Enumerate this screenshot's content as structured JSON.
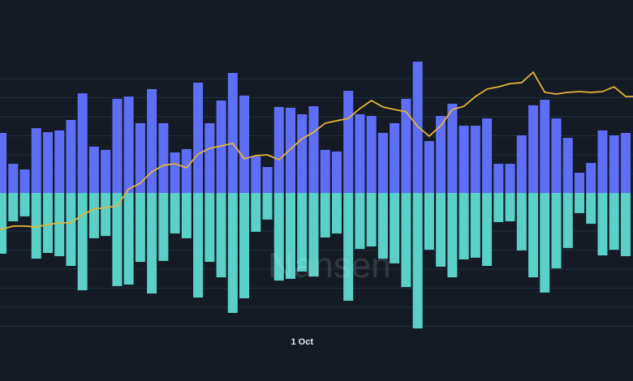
{
  "chart_data": {
    "type": "bar",
    "title": "",
    "xlabel": "",
    "ylabel": "",
    "x_tick_labels": [
      {
        "index": 26,
        "label": "1 Oct"
      }
    ],
    "ylim": [
      -7,
      6.5
    ],
    "grid": true,
    "legend": "none",
    "watermark": "Nansen",
    "colors": {
      "background": "#141b24",
      "positive": "#5f6ef6",
      "negative": "#5ad0c6",
      "line": "#e3b33b",
      "grid": "#1e3142"
    },
    "series": [
      {
        "name": "positive",
        "type": "bar",
        "values": [
          3.15,
          1.53,
          1.23,
          3.4,
          3.19,
          3.28,
          3.83,
          5.23,
          2.43,
          2.26,
          4.94,
          5.06,
          3.66,
          5.45,
          3.66,
          2.13,
          2.3,
          5.79,
          3.66,
          4.85,
          6.3,
          5.11,
          1.91,
          1.36,
          4.51,
          4.47,
          4.13,
          4.55,
          2.26,
          2.17,
          5.36,
          4.13,
          4.04,
          3.15,
          3.66,
          4.94,
          6.89,
          2.72,
          4.04,
          4.68,
          3.53,
          3.53,
          3.91,
          1.53,
          1.53,
          3.02,
          4.6,
          4.89,
          3.91,
          2.89,
          1.06,
          1.57,
          3.28,
          3.02,
          3.15
        ]
      },
      {
        "name": "negative",
        "type": "bar",
        "values": [
          -3.19,
          -1.49,
          -1.23,
          -3.45,
          -3.15,
          -3.32,
          -3.83,
          -5.11,
          -2.38,
          -2.26,
          -4.89,
          -4.81,
          -3.62,
          -5.28,
          -3.57,
          -2.13,
          -2.38,
          -5.49,
          -3.62,
          -4.43,
          -6.3,
          -5.53,
          -2.04,
          -1.4,
          -4.6,
          -4.51,
          -4.13,
          -4.38,
          -2.34,
          -2.13,
          -5.66,
          -2.94,
          -2.81,
          -3.45,
          -3.7,
          -4.94,
          -7.11,
          -2.98,
          -3.87,
          -4.43,
          -3.49,
          -3.4,
          -3.83,
          -1.53,
          -1.49,
          -3.02,
          -4.43,
          -5.23,
          -3.96,
          -2.89,
          -1.06,
          -1.62,
          -3.28,
          -2.98,
          -3.32
        ]
      },
      {
        "name": "net",
        "type": "line",
        "values": [
          -1.91,
          -1.74,
          -1.74,
          -1.79,
          -1.66,
          -1.57,
          -1.57,
          -1.15,
          -0.85,
          -0.77,
          -0.68,
          0.21,
          0.51,
          1.11,
          1.45,
          1.53,
          1.32,
          2.04,
          2.34,
          2.47,
          2.6,
          1.79,
          1.96,
          2.0,
          1.74,
          2.3,
          2.85,
          3.19,
          3.66,
          3.79,
          3.91,
          4.43,
          4.85,
          4.51,
          4.38,
          4.26,
          3.49,
          2.98,
          3.53,
          4.38,
          4.55,
          5.06,
          5.45,
          5.57,
          5.74,
          5.79,
          6.34,
          5.28,
          5.19,
          5.28,
          5.32,
          5.28,
          5.32,
          5.57,
          5.06
        ]
      }
    ]
  }
}
